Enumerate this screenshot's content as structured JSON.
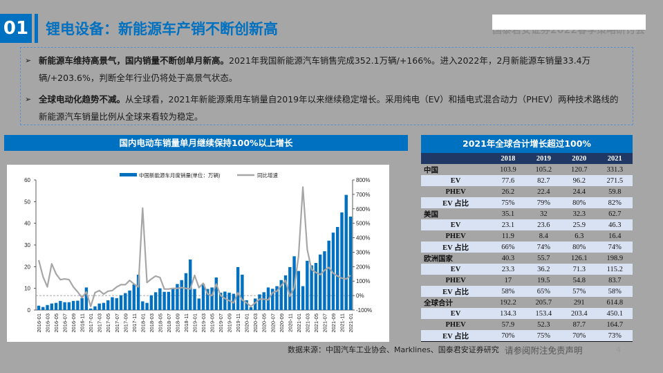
{
  "header": {
    "section_number": "01",
    "title": "锂电设备：新能源车产销不断创新高",
    "watermark": "国泰君安证券2022春季策略研讨会"
  },
  "bullets": [
    {
      "bold": "新能源车维持高景气，国内销量不断创单月新高。",
      "text": "2021年我国新能源汽车销售完成352.1万辆/+166%。进入2022年，2月新能源车销量33.4万辆/+203.6%，判断全年行业仍将处于高景气状态。"
    },
    {
      "bold": "全球电动化趋势不减。",
      "text": "从全球看，2021年新能源乘用车销量自2019年以来继续稳定增长。采用纯电（EV）和插电式混合动力（PHEV）两种技术路线的新能源汽车销量比例从全球来看较为稳定。"
    }
  ],
  "chart_title": "国内电动车销量单月继续保持100%以上增长",
  "chart_data": {
    "type": "bar+line",
    "legend": [
      "中国新能源车月度销量(单位：万辆)",
      "同比增速"
    ],
    "legend_placement": "top",
    "colors": {
      "bar": "#0070c0",
      "line": "#a6a6a6"
    },
    "x_tick_labels": [
      "2016-01",
      "2016-03",
      "2016-05",
      "2016-07",
      "2016-09",
      "2016-11",
      "2017-01",
      "2017-03",
      "2017-05",
      "2017-07",
      "2017-09",
      "2017-11",
      "2018-01",
      "2018-03",
      "2018-05",
      "2018-07",
      "2018-09",
      "2018-11",
      "2019-01",
      "2019-03",
      "2019-05",
      "2019-07",
      "2019-09",
      "2019-11",
      "2020-01",
      "2020-03",
      "2020-05",
      "2020-07",
      "2020-09",
      "2020-11",
      "2021-01",
      "2021-03",
      "2021-05",
      "2021-07",
      "2021-09",
      "2021-11",
      "2021-01"
    ],
    "y_left": {
      "range": [
        0,
        60
      ],
      "ticks": [
        "0",
        "10",
        "20",
        "30",
        "40",
        "50",
        "60"
      ]
    },
    "y_right": {
      "range": [
        -100,
        800
      ],
      "ticks": [
        "-100%",
        "0%",
        "100%",
        "200%",
        "300%",
        "400%",
        "500%",
        "600%",
        "700%",
        "800%"
      ]
    },
    "sales": [
      2.0,
      1.4,
      2.3,
      3.0,
      3.3,
      4.2,
      3.6,
      3.6,
      4.2,
      4.3,
      5.5,
      10.4,
      0.7,
      1.7,
      3.0,
      3.3,
      4.5,
      5.9,
      5.5,
      6.8,
      7.8,
      9.0,
      11.8,
      16.3,
      4.0,
      3.3,
      6.8,
      8.2,
      10.0,
      8.4,
      8.4,
      10.0,
      12.0,
      13.8,
      17.0,
      23.3,
      9.7,
      5.3,
      12.0,
      9.7,
      10.4,
      15.0,
      8.0,
      8.5,
      8.0,
      7.5,
      19.8,
      16.3,
      4.5,
      1.3,
      5.3,
      7.2,
      8.2,
      10.4,
      9.8,
      11.0,
      13.8,
      16.0,
      19.8,
      24.8,
      18.0,
      11.0,
      22.7,
      20.6,
      21.7,
      25.6,
      27.1,
      32.0,
      35.7,
      38.3,
      45.0,
      53.1,
      43.1
    ],
    "yoy_pct": [
      245,
      130,
      60,
      220,
      150,
      110,
      115,
      110,
      60,
      25,
      -15,
      25,
      -75,
      20,
      35,
      10,
      30,
      35,
      60,
      75,
      75,
      105,
      80,
      60,
      605,
      90,
      115,
      135,
      125,
      45,
      45,
      50,
      50,
      55,
      50,
      45,
      140,
      55,
      85,
      10,
      0,
      80,
      0,
      -20,
      -35,
      -50,
      20,
      -30,
      -50,
      -75,
      -50,
      -25,
      -25,
      -30,
      20,
      30,
      70,
      105,
      -5,
      55,
      270,
      750,
      320,
      180,
      160,
      145,
      175,
      195,
      155,
      135,
      120,
      115,
      140
    ],
    "grid": false,
    "reference_line": "0% dashed"
  },
  "table": {
    "title": "2021年全球合计增长超过100%",
    "columns": [
      "",
      "2018",
      "2019",
      "2020",
      "2021"
    ],
    "rows": [
      {
        "label": "中国",
        "kind": "region",
        "values": [
          "103.9",
          "105.2",
          "120.7",
          "331.3"
        ]
      },
      {
        "label": "EV",
        "kind": "sub",
        "values": [
          "77.6",
          "82.7",
          "96.2",
          "271.5"
        ]
      },
      {
        "label": "PHEV",
        "kind": "sub",
        "values": [
          "26.2",
          "22.4",
          "24.4",
          "59.8"
        ]
      },
      {
        "label": "EV 占比",
        "kind": "sub",
        "values": [
          "75%",
          "79%",
          "80%",
          "82%"
        ]
      },
      {
        "label": "美国",
        "kind": "region",
        "values": [
          "35.1",
          "32",
          "32.3",
          "62.7"
        ]
      },
      {
        "label": "EV",
        "kind": "sub",
        "values": [
          "23.1",
          "23.6",
          "25.9",
          "46.3"
        ]
      },
      {
        "label": "PHEV",
        "kind": "sub",
        "values": [
          "11.9",
          "8.4",
          "6.3",
          "16.4"
        ]
      },
      {
        "label": "EV 占比",
        "kind": "sub",
        "values": [
          "66%",
          "74%",
          "80%",
          "74%"
        ]
      },
      {
        "label": "欧洲国家",
        "kind": "region",
        "values": [
          "40.3",
          "55.7",
          "126.1",
          "198.9"
        ]
      },
      {
        "label": "EV",
        "kind": "sub",
        "values": [
          "23.3",
          "36.2",
          "71.3",
          "115.2"
        ]
      },
      {
        "label": "PHEV",
        "kind": "sub",
        "values": [
          "17",
          "19.5",
          "54.8",
          "83.7"
        ]
      },
      {
        "label": "EV 占比",
        "kind": "sub",
        "values": [
          "58%",
          "65%",
          "57%",
          "58%"
        ]
      },
      {
        "label": "全球合计",
        "kind": "region",
        "values": [
          "192.2",
          "205.7",
          "291",
          "614.8"
        ]
      },
      {
        "label": "EV",
        "kind": "sub",
        "values": [
          "134.3",
          "153.4",
          "203.4",
          "450.1"
        ]
      },
      {
        "label": "PHEV",
        "kind": "sub",
        "values": [
          "57.9",
          "52.3",
          "87.7",
          "164.7"
        ]
      },
      {
        "label": "EV 占比",
        "kind": "sub",
        "values": [
          "70%",
          "75%",
          "70%",
          "73%"
        ]
      }
    ]
  },
  "footer": {
    "source": "数据来源：中国汽车工业协会、Marklines、国泰君安证券研究",
    "disclaimer": "请参阅附注免责声明",
    "page_number": "4"
  }
}
